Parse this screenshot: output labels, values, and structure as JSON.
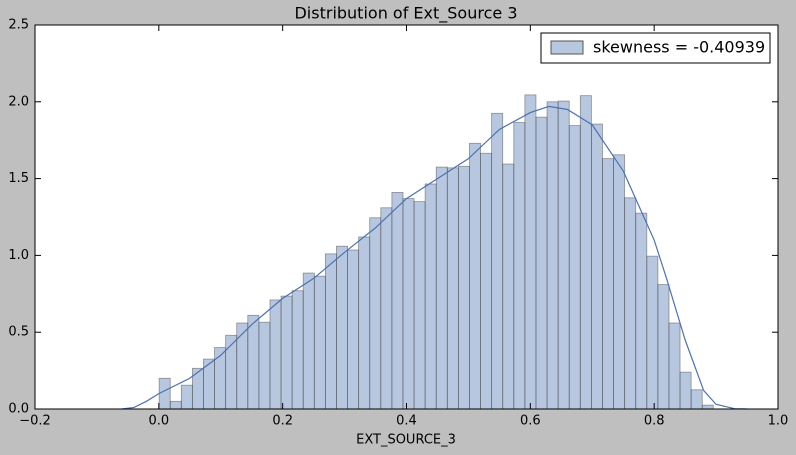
{
  "chart_data": {
    "type": "histogram",
    "title": "Distribution of Ext_Source 3",
    "xlabel": "EXT_SOURCE_3",
    "bins": [
      0.0005,
      0.0184,
      0.0363,
      0.0542,
      0.0721,
      0.09,
      0.1079,
      0.1258,
      0.1437,
      0.1616,
      0.1795,
      0.1974,
      0.2153,
      0.2332,
      0.2511,
      0.269,
      0.2869,
      0.3048,
      0.3227,
      0.3406,
      0.3585,
      0.3764,
      0.3943,
      0.4122,
      0.4301,
      0.448,
      0.4659,
      0.4838,
      0.5017,
      0.5196,
      0.5375,
      0.5554,
      0.5733,
      0.5912,
      0.6091,
      0.627,
      0.6449,
      0.6628,
      0.6807,
      0.6986,
      0.7165,
      0.7344,
      0.7523,
      0.7702,
      0.7881,
      0.806,
      0.8239,
      0.8418,
      0.8597,
      0.8776,
      0.8955
    ],
    "series": [
      {
        "name": "skewness = -0.40939",
        "color": "#4c72b0",
        "values": [
          0.2,
          0.05,
          0.155,
          0.265,
          0.325,
          0.4,
          0.48,
          0.56,
          0.61,
          0.565,
          0.71,
          0.735,
          0.77,
          0.885,
          0.865,
          1.01,
          1.06,
          1.035,
          1.12,
          1.245,
          1.31,
          1.41,
          1.37,
          1.35,
          1.465,
          1.575,
          1.57,
          1.58,
          1.73,
          1.665,
          1.925,
          1.595,
          1.865,
          2.045,
          1.9,
          2.0,
          2.005,
          1.845,
          2.04,
          1.855,
          1.63,
          1.655,
          1.375,
          1.275,
          0.995,
          0.81,
          0.56,
          0.24,
          0.125,
          0.025
        ]
      }
    ],
    "kde": {
      "color": "#4c72b0",
      "x": [
        -0.06,
        -0.04,
        -0.02,
        0,
        0.05,
        0.1,
        0.15,
        0.2,
        0.25,
        0.3,
        0.35,
        0.4,
        0.45,
        0.5,
        0.55,
        0.6,
        0.63,
        0.66,
        0.7,
        0.75,
        0.8,
        0.82,
        0.85,
        0.88,
        0.9,
        0.93,
        0.95
      ],
      "y": [
        0,
        0.01,
        0.05,
        0.1,
        0.2,
        0.35,
        0.55,
        0.72,
        0.85,
        1.02,
        1.18,
        1.37,
        1.5,
        1.63,
        1.82,
        1.93,
        1.97,
        1.95,
        1.85,
        1.55,
        1.1,
        0.85,
        0.45,
        0.12,
        0.03,
        0.002,
        0
      ]
    },
    "xlim": [
      -0.2,
      1.0
    ],
    "ylim": [
      0,
      2.5
    ],
    "xticks": [
      {
        "value": -0.2,
        "label": "−0.2"
      },
      {
        "value": 0,
        "label": "0.0"
      },
      0.2,
      0.4,
      0.6,
      0.8,
      {
        "value": 1.0,
        "label": "1.0"
      }
    ],
    "yticks": [
      {
        "value": 0,
        "label": "0.0"
      },
      0.5,
      {
        "value": 1.0,
        "label": "1.0"
      },
      1.5,
      {
        "value": 2.0,
        "label": "2.0"
      },
      2.5
    ],
    "legend": "upper right"
  }
}
